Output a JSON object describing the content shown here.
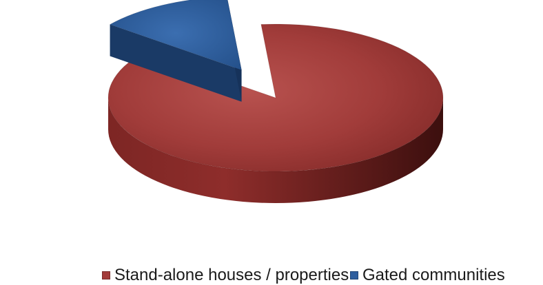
{
  "chart_data": {
    "type": "pie",
    "categories": [
      "Stand-alone houses / properties",
      "Gated communities"
    ],
    "values": [
      87,
      13
    ],
    "colors": [
      "#A23B3A",
      "#2E5E9E"
    ],
    "exploded": [
      false,
      true
    ],
    "legend_position": "bottom",
    "title": ""
  }
}
